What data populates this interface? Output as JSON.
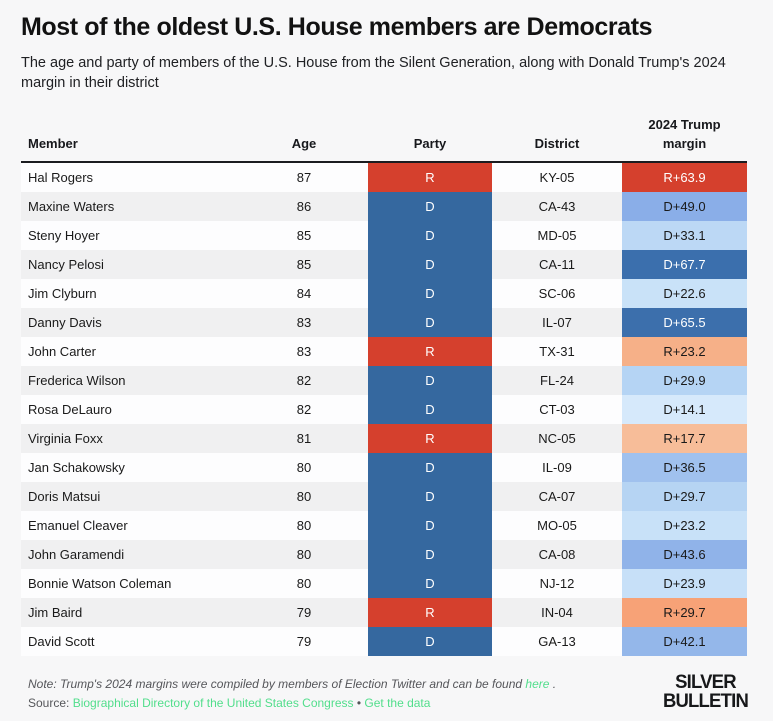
{
  "page": {
    "title": "Most of the oldest U.S. House members are Democrats",
    "subtitle": "The age and party of members of the U.S. House from the Silent Generation, along with Donald Trump's 2024 margin in their district"
  },
  "colors": {
    "republican_red": "#d5402d",
    "democrat_blue": "#35689f",
    "header_rule": "#1b1c20",
    "link_green": "#52de8c",
    "row_even": "#fdfdfe",
    "row_odd": "#f0f0f1"
  },
  "table_header": {
    "member": "Member",
    "age": "Age",
    "party": "Party",
    "district": "District",
    "margin_line1": "2024 Trump",
    "margin_line2": "margin"
  },
  "chart_data": {
    "type": "table",
    "title": "Most of the oldest U.S. House members are Democrats",
    "columns": [
      "Member",
      "Age",
      "Party",
      "District",
      "2024 Trump margin"
    ],
    "rows": [
      {
        "member": "Hal Rogers",
        "age": "87",
        "party": "R",
        "district": "KY-05",
        "margin": "R+63.9",
        "margin_value": 63.9,
        "party_bg": "#d5402d",
        "margin_bg": "#d5402d",
        "margin_fg": "#ffffff"
      },
      {
        "member": "Maxine Waters",
        "age": "86",
        "party": "D",
        "district": "CA-43",
        "margin": "D+49.0",
        "margin_value": 49.0,
        "party_bg": "#35689f",
        "margin_bg": "#8aaee8",
        "margin_fg": "#1a1a1a"
      },
      {
        "member": "Steny Hoyer",
        "age": "85",
        "party": "D",
        "district": "MD-05",
        "margin": "D+33.1",
        "margin_value": 33.1,
        "party_bg": "#35689f",
        "margin_bg": "#bcd8f5",
        "margin_fg": "#1a1a1a"
      },
      {
        "member": "Nancy Pelosi",
        "age": "85",
        "party": "D",
        "district": "CA-11",
        "margin": "D+67.7",
        "margin_value": 67.7,
        "party_bg": "#35689f",
        "margin_bg": "#3b6fad",
        "margin_fg": "#ffffff"
      },
      {
        "member": "Jim Clyburn",
        "age": "84",
        "party": "D",
        "district": "SC-06",
        "margin": "D+22.6",
        "margin_value": 22.6,
        "party_bg": "#35689f",
        "margin_bg": "#c9e2f8",
        "margin_fg": "#1a1a1a"
      },
      {
        "member": "Danny Davis",
        "age": "83",
        "party": "D",
        "district": "IL-07",
        "margin": "D+65.5",
        "margin_value": 65.5,
        "party_bg": "#35689f",
        "margin_bg": "#3c6fac",
        "margin_fg": "#ffffff"
      },
      {
        "member": "John Carter",
        "age": "83",
        "party": "R",
        "district": "TX-31",
        "margin": "R+23.2",
        "margin_value": 23.2,
        "party_bg": "#d5402d",
        "margin_bg": "#f6b088",
        "margin_fg": "#1a1a1a"
      },
      {
        "member": "Frederica Wilson",
        "age": "82",
        "party": "D",
        "district": "FL-24",
        "margin": "D+29.9",
        "margin_value": 29.9,
        "party_bg": "#35689f",
        "margin_bg": "#b5d4f4",
        "margin_fg": "#1a1a1a"
      },
      {
        "member": "Rosa DeLauro",
        "age": "82",
        "party": "D",
        "district": "CT-03",
        "margin": "D+14.1",
        "margin_value": 14.1,
        "party_bg": "#35689f",
        "margin_bg": "#d6e9fb",
        "margin_fg": "#1a1a1a"
      },
      {
        "member": "Virginia Foxx",
        "age": "81",
        "party": "R",
        "district": "NC-05",
        "margin": "R+17.7",
        "margin_value": 17.7,
        "party_bg": "#d5402d",
        "margin_bg": "#f7bd99",
        "margin_fg": "#1a1a1a"
      },
      {
        "member": "Jan Schakowsky",
        "age": "80",
        "party": "D",
        "district": "IL-09",
        "margin": "D+36.5",
        "margin_value": 36.5,
        "party_bg": "#35689f",
        "margin_bg": "#a0c1ee",
        "margin_fg": "#1a1a1a"
      },
      {
        "member": "Doris Matsui",
        "age": "80",
        "party": "D",
        "district": "CA-07",
        "margin": "D+29.7",
        "margin_value": 29.7,
        "party_bg": "#35689f",
        "margin_bg": "#b6d4f3",
        "margin_fg": "#1a1a1a"
      },
      {
        "member": "Emanuel Cleaver",
        "age": "80",
        "party": "D",
        "district": "MO-05",
        "margin": "D+23.2",
        "margin_value": 23.2,
        "party_bg": "#35689f",
        "margin_bg": "#c8e1f8",
        "margin_fg": "#1a1a1a"
      },
      {
        "member": "John Garamendi",
        "age": "80",
        "party": "D",
        "district": "CA-08",
        "margin": "D+43.6",
        "margin_value": 43.6,
        "party_bg": "#35689f",
        "margin_bg": "#90b3e9",
        "margin_fg": "#1a1a1a"
      },
      {
        "member": "Bonnie Watson Coleman",
        "age": "80",
        "party": "D",
        "district": "NJ-12",
        "margin": "D+23.9",
        "margin_value": 23.9,
        "party_bg": "#35689f",
        "margin_bg": "#c7e0f8",
        "margin_fg": "#1a1a1a"
      },
      {
        "member": "Jim Baird",
        "age": "79",
        "party": "R",
        "district": "IN-04",
        "margin": "R+29.7",
        "margin_value": 29.7,
        "party_bg": "#d5402d",
        "margin_bg": "#f7a277",
        "margin_fg": "#1a1a1a"
      },
      {
        "member": "David Scott",
        "age": "79",
        "party": "D",
        "district": "GA-13",
        "margin": "D+42.1",
        "margin_value": 42.1,
        "party_bg": "#35689f",
        "margin_bg": "#94b7ea",
        "margin_fg": "#1a1a1a"
      }
    ]
  },
  "footer": {
    "note_prefix": "Note: Trump's 2024 margins were compiled by members of Election Twitter and can be found ",
    "note_link": "here",
    "note_suffix": " .",
    "source_prefix": "Source: ",
    "source_link1": "Biographical Directory of the United States Congress",
    "source_separator": " • ",
    "source_link2": "Get the data",
    "logo_line1": "SILVER",
    "logo_line2": "BULLETIN"
  }
}
